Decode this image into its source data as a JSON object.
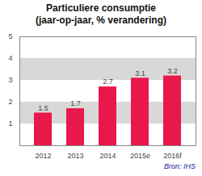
{
  "chart_data": {
    "type": "bar",
    "title": "Particuliere consumptie",
    "subtitle": "(jaar-op-jaar, % verandering)",
    "categories": [
      "2012",
      "2013",
      "2014",
      "2015e",
      "2016f"
    ],
    "values": [
      1.5,
      1.7,
      2.7,
      3.1,
      3.2
    ],
    "color": "#e8184a",
    "ylim": [
      0,
      5
    ],
    "yticks": [
      1,
      2,
      3,
      4,
      5
    ],
    "grid": true,
    "data_labels": true,
    "annotations": [
      "Bron: IHS"
    ]
  }
}
